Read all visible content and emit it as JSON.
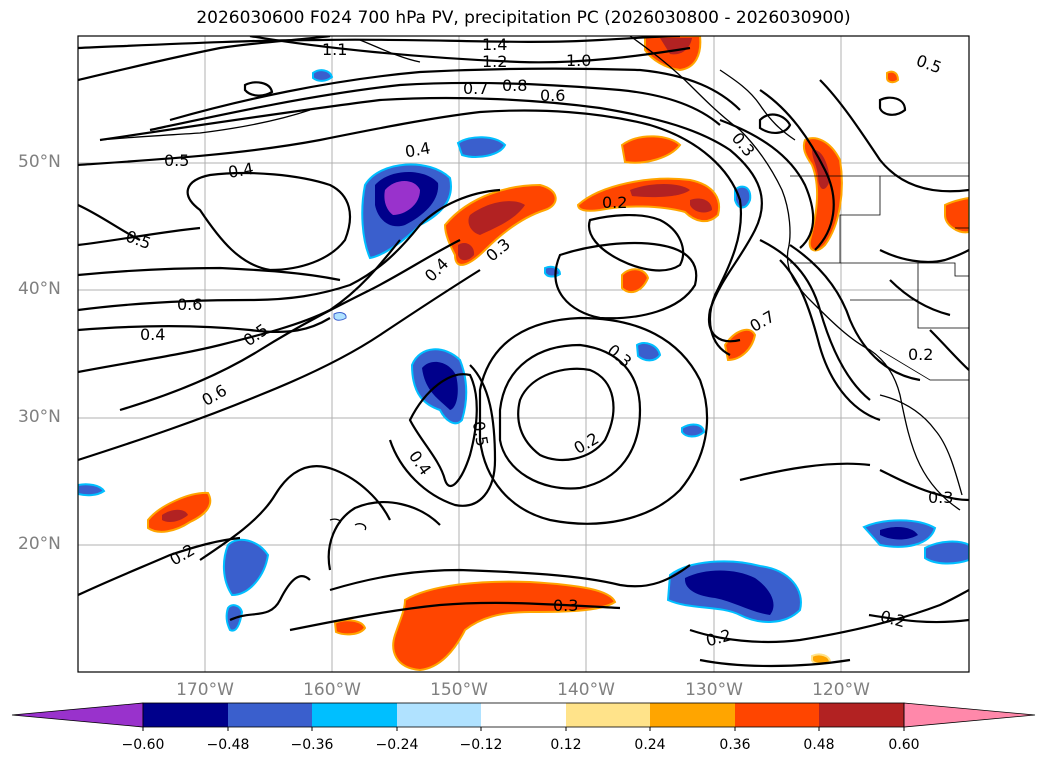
{
  "title": "2026030600 F024 700 hPa PV, precipitation PC (2026030800 - 2026030900)",
  "lat_labels": [
    "50°N",
    "40°N",
    "30°N",
    "20°N"
  ],
  "lon_labels": [
    "170°W",
    "160°W",
    "150°W",
    "140°W",
    "130°W",
    "120°W"
  ],
  "contour_labels": [
    "1.4",
    "1.2",
    "1.0",
    "0.8",
    "0.7",
    "0.6",
    "0.5",
    "0.4",
    "0.4",
    "0.5",
    "0.6",
    "0.4",
    "0.5",
    "0.6",
    "0.4",
    "0.3",
    "0.2",
    "0.3",
    "0.2",
    "0.7",
    "0.2",
    "0.3",
    "0.5",
    "0.4",
    "0.2",
    "0.3",
    "0.2",
    "0.2",
    "0.3",
    "0.5",
    "1.1"
  ],
  "colorbar": {
    "ticks": [
      "−0.60",
      "−0.48",
      "−0.36",
      "−0.24",
      "−0.12",
      "0.12",
      "0.24",
      "0.36",
      "0.48",
      "0.60"
    ],
    "colors": [
      "#9932cc",
      "#00008b",
      "#3a5fcd",
      "#00bfff",
      "#b0e2ff",
      "#ffffff",
      "#ffe38a",
      "#ffa500",
      "#ff4500",
      "#b22222",
      "#ff88aa"
    ]
  }
}
